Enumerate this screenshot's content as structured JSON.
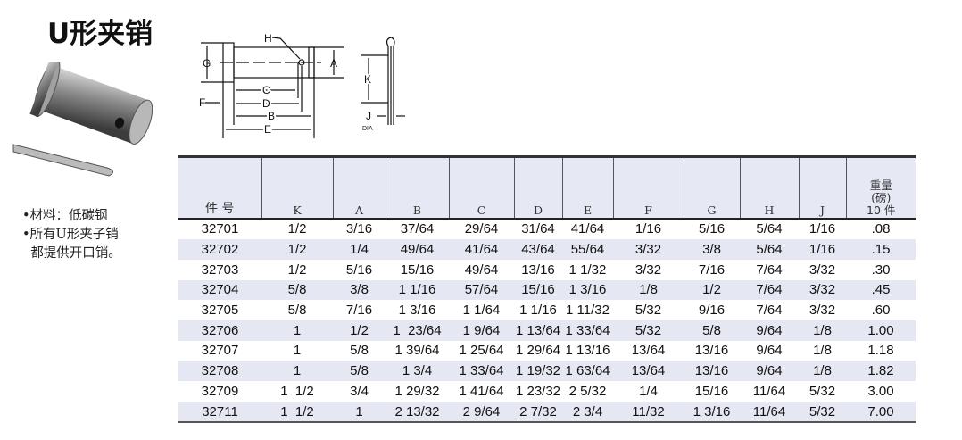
{
  "title": "U形夹销",
  "notes": [
    "•材料：低碳钢",
    "•所有U形夹子销",
    "  都提供开口销。"
  ],
  "diagram_labels": {
    "H": "H",
    "G": "G",
    "A": "A",
    "F": "F",
    "C": "C",
    "D": "D",
    "B": "B",
    "E": "E",
    "K": "K",
    "J": "J",
    "dia": "DIA"
  },
  "table": {
    "headers": [
      "件 号",
      "K",
      "A",
      "B",
      "C",
      "D",
      "E",
      "F",
      "G",
      "H",
      "J"
    ],
    "weight_header": [
      "重量",
      "(磅)",
      "10 件"
    ],
    "rows": [
      [
        "32701",
        "1/2",
        "3/16",
        "37/64",
        "29/64",
        "31/64",
        "41/64",
        "1/16",
        "5/16",
        "5/64",
        "1/16",
        ".08"
      ],
      [
        "32702",
        "1/2",
        "1/4",
        "49/64",
        "41/64",
        "43/64",
        "55/64",
        "3/32",
        "3/8",
        "5/64",
        "1/16",
        ".15"
      ],
      [
        "32703",
        "1/2",
        "5/16",
        "15/16",
        "49/64",
        "13/16",
        "1 1/32",
        "3/32",
        "7/16",
        "7/64",
        "3/32",
        ".30"
      ],
      [
        "32704",
        "5/8",
        "3/8",
        "1 1/16",
        "57/64",
        "15/16",
        "1 3/16",
        "1/8",
        "1/2",
        "7/64",
        "3/32",
        ".45"
      ],
      [
        "32705",
        "5/8",
        "7/16",
        "1 3/16",
        "1 1/64",
        "1 1/16",
        "1 11/32",
        "5/32",
        "9/16",
        "7/64",
        "3/32",
        ".60"
      ],
      [
        "32706",
        "1",
        "1/2",
        "1  23/64",
        "1 9/64",
        "1 13/64",
        "1 33/64",
        "5/32",
        "5/8",
        "9/64",
        "1/8",
        "1.00"
      ],
      [
        "32707",
        "1",
        "5/8",
        "1 39/64",
        "1 25/64",
        "1 29/64",
        "1 13/16",
        "13/64",
        "13/16",
        "9/64",
        "1/8",
        "1.18"
      ],
      [
        "32708",
        "1",
        "5/8",
        "1 3/4",
        "1 33/64",
        "1 19/32",
        "1 63/64",
        "13/64",
        "13/16",
        "9/64",
        "1/8",
        "1.82"
      ],
      [
        "32709",
        "1  1/2",
        "3/4",
        "1 29/32",
        "1 41/64",
        "1 23/32",
        "2 5/32",
        "1/4",
        "15/16",
        "11/64",
        "5/32",
        "3.00"
      ],
      [
        "32711",
        "1  1/2",
        "1",
        "2 13/32",
        "2 9/64",
        "2 7/32",
        "2 3/4",
        "11/32",
        "1 3/16",
        "11/64",
        "5/32",
        "7.00"
      ]
    ]
  }
}
